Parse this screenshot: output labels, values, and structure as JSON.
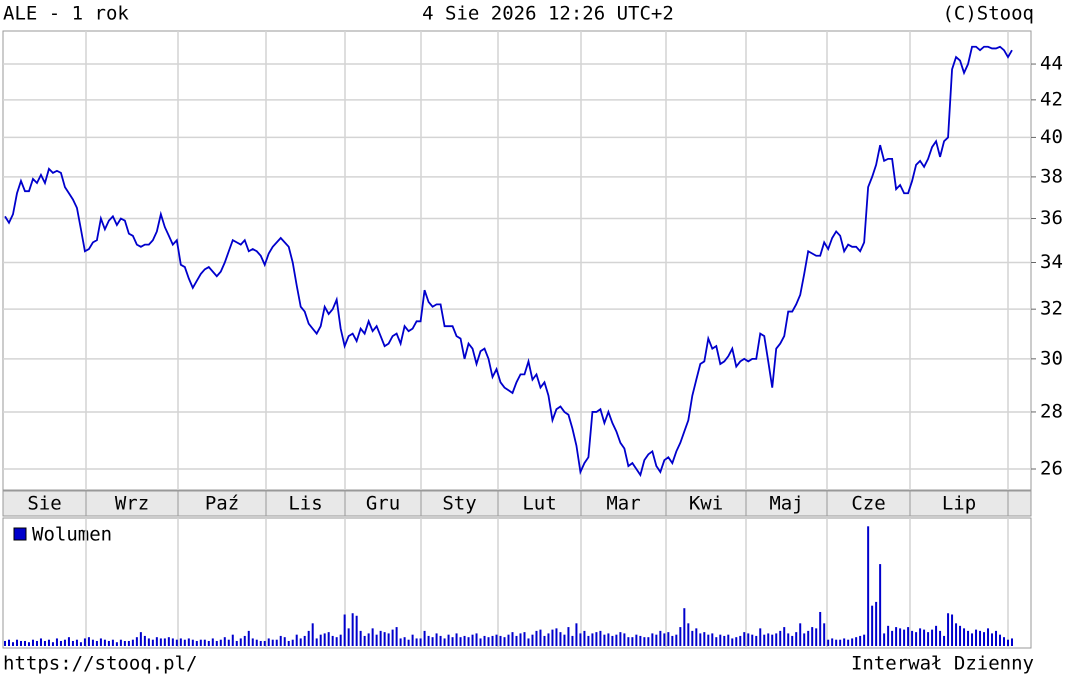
{
  "chart_data": {
    "type": "line",
    "title": "ALE - 1 rok",
    "date": "4 Sie 2026 12:26 UTC+2",
    "source": "(C)Stooq",
    "url": "https://stooq.pl/",
    "interval": "Interwał Dzienny",
    "months": [
      "Sie",
      "Wrz",
      "Paź",
      "Lis",
      "Gru",
      "Sty",
      "Lut",
      "Mar",
      "Kwi",
      "Maj",
      "Cze",
      "Lip"
    ],
    "log_scale": true,
    "grid": true,
    "ylim": [
      25.3,
      45.93
    ],
    "yticks": [
      26,
      28,
      30,
      32,
      34,
      36,
      38,
      40,
      42,
      44
    ],
    "series": [
      {
        "color": "#0000cc",
        "values": [
          36.1,
          35.8,
          36.2,
          37.2,
          37.8,
          37.3,
          37.3,
          37.9,
          37.7,
          38.1,
          37.7,
          38.4,
          38.2,
          38.3,
          38.2,
          37.5,
          37.2,
          36.9,
          36.5,
          35.5,
          34.5,
          34.6,
          34.9,
          35.0,
          36.0,
          35.5,
          35.9,
          36.1,
          35.7,
          36.0,
          35.9,
          35.3,
          35.2,
          34.8,
          34.7,
          34.8,
          34.8,
          35.0,
          35.4,
          36.2,
          35.6,
          35.2,
          34.8,
          35.0,
          33.9,
          33.8,
          33.3,
          32.9,
          33.2,
          33.5,
          33.7,
          33.8,
          33.6,
          33.4,
          33.6,
          34.0,
          34.5,
          35.0,
          34.9,
          34.8,
          35.0,
          34.5,
          34.6,
          34.5,
          34.3,
          33.9,
          34.4,
          34.7,
          34.9,
          35.1,
          34.9,
          34.7,
          34.0,
          33.0,
          32.1,
          31.9,
          31.4,
          31.2,
          31.0,
          31.3,
          32.1,
          31.8,
          32.0,
          32.4,
          31.2,
          30.5,
          30.9,
          31.0,
          30.7,
          31.2,
          31.0,
          31.5,
          31.1,
          31.3,
          30.9,
          30.5,
          30.6,
          30.9,
          31.0,
          30.6,
          31.3,
          31.1,
          31.2,
          31.5,
          31.5,
          32.8,
          32.3,
          32.1,
          32.2,
          32.2,
          31.3,
          31.3,
          31.3,
          30.9,
          30.8,
          30.0,
          30.6,
          30.4,
          29.8,
          30.3,
          30.4,
          30.0,
          29.3,
          29.6,
          29.1,
          28.9,
          28.8,
          28.7,
          29.1,
          29.4,
          29.4,
          29.9,
          29.2,
          29.4,
          28.9,
          29.1,
          28.6,
          27.7,
          28.1,
          28.2,
          28.0,
          27.9,
          27.4,
          26.8,
          25.9,
          26.2,
          26.4,
          28.0,
          28.0,
          28.1,
          27.6,
          28.0,
          27.6,
          27.3,
          26.9,
          26.7,
          26.1,
          26.2,
          26.0,
          25.8,
          26.3,
          26.5,
          26.6,
          26.1,
          25.9,
          26.3,
          26.4,
          26.2,
          26.6,
          26.9,
          27.3,
          27.7,
          28.6,
          29.2,
          29.8,
          29.9,
          30.8,
          30.4,
          30.5,
          29.8,
          29.9,
          30.1,
          30.4,
          29.7,
          29.9,
          30.0,
          29.9,
          30.0,
          30.0,
          31.0,
          30.9,
          29.9,
          28.9,
          30.4,
          30.6,
          30.9,
          31.9,
          31.9,
          32.2,
          32.6,
          33.5,
          34.5,
          34.4,
          34.3,
          34.3,
          34.9,
          34.6,
          35.1,
          35.4,
          35.2,
          34.5,
          34.8,
          34.7,
          34.7,
          34.5,
          34.9,
          37.5,
          38.0,
          38.6,
          39.6,
          38.8,
          38.9,
          38.9,
          37.4,
          37.6,
          37.2,
          37.2,
          37.8,
          38.6,
          38.8,
          38.5,
          38.9,
          39.5,
          39.8,
          39.0,
          39.8,
          40.0,
          43.7,
          44.4,
          44.2,
          43.5,
          44.0,
          45.0,
          45.0,
          44.8,
          45.0,
          45.0,
          44.9,
          44.9,
          45.0,
          44.8,
          44.4,
          44.8
        ]
      }
    ],
    "volume": {
      "name": "Wolumen",
      "color": "#0000cc",
      "ylim": [
        0,
        100
      ],
      "values": [
        4,
        5,
        3,
        5,
        4,
        4,
        3,
        5,
        4,
        6,
        4,
        5,
        3,
        6,
        4,
        5,
        7,
        4,
        5,
        3,
        6,
        7,
        5,
        4,
        6,
        5,
        4,
        5,
        3,
        5,
        4,
        4,
        5,
        7,
        11,
        8,
        6,
        5,
        7,
        6,
        6,
        7,
        6,
        5,
        6,
        5,
        6,
        5,
        4,
        5,
        5,
        4,
        6,
        4,
        5,
        7,
        5,
        9,
        4,
        6,
        8,
        12,
        6,
        5,
        4,
        4,
        6,
        5,
        5,
        8,
        7,
        4,
        5,
        9,
        6,
        8,
        12,
        18,
        6,
        9,
        10,
        11,
        8,
        7,
        9,
        25,
        14,
        26,
        24,
        12,
        8,
        10,
        14,
        9,
        12,
        11,
        10,
        13,
        15,
        6,
        7,
        5,
        9,
        6,
        6,
        12,
        8,
        7,
        10,
        8,
        6,
        9,
        7,
        10,
        7,
        8,
        7,
        9,
        10,
        6,
        8,
        7,
        8,
        9,
        8,
        7,
        9,
        11,
        8,
        10,
        11,
        6,
        9,
        12,
        13,
        8,
        10,
        13,
        14,
        11,
        9,
        15,
        8,
        18,
        10,
        12,
        8,
        10,
        11,
        12,
        9,
        10,
        8,
        9,
        11,
        10,
        7,
        7,
        9,
        8,
        7,
        7,
        10,
        9,
        12,
        10,
        11,
        8,
        9,
        15,
        30,
        18,
        12,
        14,
        10,
        11,
        9,
        10,
        7,
        9,
        8,
        9,
        6,
        7,
        8,
        11,
        10,
        9,
        8,
        14,
        9,
        10,
        9,
        10,
        12,
        15,
        10,
        8,
        11,
        18,
        10,
        12,
        15,
        14,
        27,
        18,
        5,
        6,
        5,
        5,
        6,
        5,
        6,
        7,
        8,
        9,
        95,
        32,
        35,
        65,
        10,
        16,
        12,
        15,
        14,
        13,
        15,
        12,
        11,
        14,
        13,
        11,
        13,
        16,
        12,
        8,
        26,
        25,
        18,
        16,
        14,
        12,
        10,
        13,
        12,
        11,
        14,
        10,
        12,
        9,
        7,
        5,
        6
      ]
    }
  }
}
